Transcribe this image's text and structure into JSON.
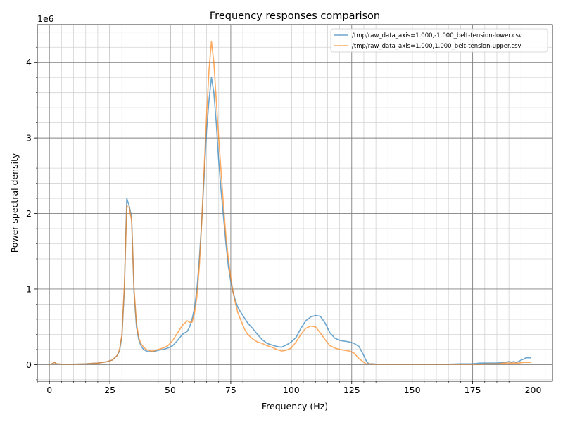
{
  "chart_data": {
    "type": "line",
    "title": "Frequency responses comparison",
    "xlabel": "Frequency (Hz)",
    "ylabel": "Power spectral density",
    "y_scale_label": "1e6",
    "xlim": [
      -5,
      208
    ],
    "ylim": [
      -0.22,
      4.5
    ],
    "x_ticks": [
      0,
      25,
      50,
      75,
      100,
      125,
      150,
      175,
      200
    ],
    "x_tick_labels": [
      "0",
      "25",
      "50",
      "75",
      "100",
      "125",
      "150",
      "175",
      "200"
    ],
    "y_ticks": [
      0,
      1,
      2,
      3,
      4
    ],
    "y_tick_labels": [
      "0",
      "1",
      "2",
      "3",
      "4"
    ],
    "grid": true,
    "legend_position": "top-right",
    "series": [
      {
        "name": "/tmp/raw_data_axis=1.000,-1.000_belt-tension-lower.csv",
        "color": "#1f77b4",
        "x": [
          0,
          1,
          2,
          3,
          5,
          10,
          15,
          20,
          22,
          24,
          26,
          27,
          28,
          29,
          30,
          31,
          32,
          33,
          34,
          35,
          36,
          37,
          38,
          39,
          40,
          41,
          42,
          43,
          44,
          45,
          47,
          49,
          51,
          53,
          55,
          57,
          58,
          59,
          60,
          61,
          62,
          63,
          64,
          65,
          66,
          67,
          68,
          69,
          70,
          71,
          72,
          73,
          74,
          75,
          76,
          77,
          78,
          79,
          80,
          81,
          82,
          84,
          86,
          88,
          90,
          92,
          94,
          96,
          98,
          100,
          102,
          104,
          106,
          108,
          110,
          112,
          114,
          116,
          118,
          120,
          122,
          124,
          126,
          128,
          130,
          131,
          132,
          133,
          134,
          135,
          137,
          140,
          145,
          150,
          155,
          160,
          165,
          170,
          175,
          178,
          182,
          185,
          188,
          190,
          191,
          192,
          193,
          194,
          195,
          196,
          197,
          198,
          199
        ],
        "values": [
          0.0,
          0.01,
          0.03,
          0.01,
          0.005,
          0.005,
          0.01,
          0.02,
          0.03,
          0.04,
          0.06,
          0.09,
          0.12,
          0.18,
          0.38,
          1.0,
          2.2,
          2.1,
          1.95,
          0.95,
          0.5,
          0.32,
          0.24,
          0.2,
          0.18,
          0.17,
          0.17,
          0.17,
          0.18,
          0.19,
          0.2,
          0.22,
          0.25,
          0.32,
          0.4,
          0.44,
          0.5,
          0.6,
          0.75,
          1.0,
          1.4,
          1.9,
          2.5,
          3.1,
          3.5,
          3.8,
          3.6,
          3.2,
          2.7,
          2.3,
          1.95,
          1.6,
          1.3,
          1.1,
          0.95,
          0.84,
          0.75,
          0.7,
          0.65,
          0.6,
          0.55,
          0.48,
          0.4,
          0.33,
          0.28,
          0.26,
          0.24,
          0.23,
          0.26,
          0.3,
          0.36,
          0.48,
          0.58,
          0.63,
          0.65,
          0.64,
          0.55,
          0.42,
          0.35,
          0.32,
          0.31,
          0.3,
          0.28,
          0.24,
          0.12,
          0.05,
          0.01,
          0.01,
          0.01,
          0.005,
          0.005,
          0.005,
          0.005,
          0.005,
          0.005,
          0.005,
          0.005,
          0.01,
          0.01,
          0.02,
          0.02,
          0.02,
          0.03,
          0.04,
          0.03,
          0.04,
          0.03,
          0.04,
          0.06,
          0.07,
          0.09,
          0.09,
          0.09
        ]
      },
      {
        "name": "/tmp/raw_data_axis=1.000,1.000_belt-tension-upper.csv",
        "color": "#ff7f0e",
        "x": [
          0,
          1,
          2,
          3,
          5,
          10,
          15,
          20,
          22,
          24,
          26,
          27,
          28,
          29,
          30,
          31,
          32,
          33,
          34,
          35,
          36,
          37,
          38,
          39,
          40,
          41,
          42,
          43,
          44,
          45,
          47,
          49,
          51,
          53,
          55,
          57,
          58,
          59,
          60,
          61,
          62,
          63,
          64,
          65,
          66,
          67,
          68,
          69,
          70,
          71,
          72,
          73,
          74,
          75,
          76,
          77,
          78,
          79,
          80,
          81,
          82,
          84,
          86,
          88,
          90,
          92,
          94,
          96,
          98,
          100,
          102,
          104,
          106,
          108,
          110,
          112,
          114,
          116,
          118,
          120,
          122,
          124,
          126,
          128,
          130,
          131,
          132,
          133,
          134,
          135,
          137,
          140,
          145,
          150,
          155,
          160,
          165,
          170,
          175,
          178,
          182,
          185,
          188,
          190,
          192,
          194,
          196,
          198,
          199
        ],
        "values": [
          0.0,
          0.01,
          0.03,
          0.01,
          0.005,
          0.005,
          0.01,
          0.02,
          0.03,
          0.04,
          0.06,
          0.09,
          0.12,
          0.2,
          0.4,
          1.05,
          2.1,
          2.08,
          1.9,
          1.0,
          0.55,
          0.35,
          0.27,
          0.23,
          0.2,
          0.19,
          0.18,
          0.18,
          0.19,
          0.2,
          0.22,
          0.25,
          0.32,
          0.42,
          0.52,
          0.58,
          0.56,
          0.56,
          0.68,
          0.9,
          1.3,
          1.9,
          2.6,
          3.3,
          3.9,
          4.28,
          4.0,
          3.5,
          3.0,
          2.55,
          2.1,
          1.7,
          1.4,
          1.15,
          0.95,
          0.8,
          0.68,
          0.6,
          0.52,
          0.45,
          0.4,
          0.34,
          0.3,
          0.28,
          0.25,
          0.23,
          0.2,
          0.18,
          0.19,
          0.22,
          0.3,
          0.4,
          0.48,
          0.51,
          0.5,
          0.42,
          0.33,
          0.25,
          0.22,
          0.2,
          0.19,
          0.18,
          0.15,
          0.08,
          0.03,
          0.01,
          0.01,
          0.01,
          0.005,
          0.005,
          0.005,
          0.005,
          0.005,
          0.005,
          0.005,
          0.005,
          0.005,
          0.005,
          0.005,
          0.005,
          0.01,
          0.01,
          0.02,
          0.02,
          0.02,
          0.02,
          0.03,
          0.03,
          0.03
        ]
      }
    ]
  }
}
